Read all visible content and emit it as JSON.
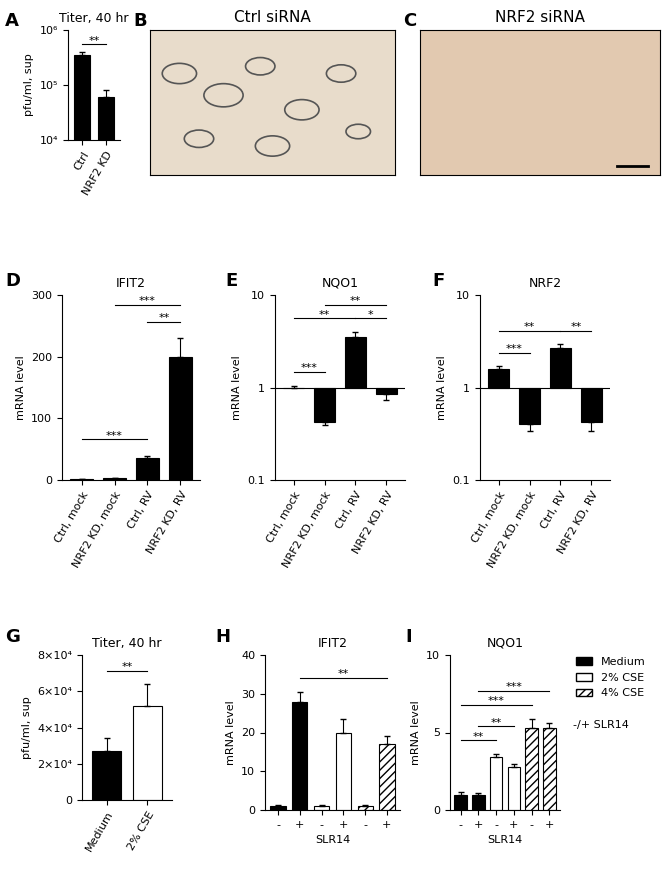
{
  "chart_data": [
    {
      "panel": "A",
      "type": "bar",
      "title": "Titer, 40 hr",
      "y_label": "pfu/ml, sup",
      "categories": [
        "Ctrl",
        "NRF2 KD"
      ],
      "values": [
        350000,
        60000
      ],
      "errors": [
        40000,
        20000
      ],
      "color": "#000000",
      "log": "y",
      "ylim": [
        10000,
        1000000
      ],
      "yticks": [
        {
          "value": 10000,
          "label": "10⁴"
        },
        {
          "value": 100000,
          "label": "10⁵"
        },
        {
          "value": 1000000,
          "label": "10⁶"
        }
      ],
      "significance": [
        {
          "bars": [
            0,
            1
          ],
          "text": "**"
        }
      ]
    },
    {
      "panel": "B",
      "type": "image",
      "title": "Ctrl siRNA"
    },
    {
      "panel": "C",
      "type": "image",
      "title": "NRF2 siRNA"
    },
    {
      "panel": "D",
      "type": "bar",
      "title": "IFIT2",
      "y_label": "mRNA level",
      "categories": [
        "Ctrl, mock",
        "NRF2 KD, mock",
        "Ctrl, RV",
        "NRF2 KD, RV"
      ],
      "values": [
        1,
        3,
        35,
        200
      ],
      "errors": [
        0.3,
        1,
        4,
        30
      ],
      "color": "#000000",
      "ylim": [
        0,
        300
      ],
      "yticks": [
        0,
        100,
        200,
        300
      ],
      "significance": [
        {
          "bars": [
            0,
            2
          ],
          "text": "***"
        },
        {
          "bars": [
            2,
            3
          ],
          "text": "**"
        },
        {
          "bars": [
            1,
            3
          ],
          "text": "***"
        }
      ]
    },
    {
      "panel": "E",
      "type": "bar",
      "title": "NQO1",
      "y_label": "mRNA level",
      "categories": [
        "Ctrl, mock",
        "NRF2 KD, mock",
        "Ctrl, RV",
        "NRF2 KD, RV"
      ],
      "values": [
        1.0,
        0.42,
        3.5,
        0.85
      ],
      "errors": [
        0.05,
        0.03,
        0.5,
        0.12
      ],
      "color": "#000000",
      "log": "y",
      "baseline": 1,
      "ylim": [
        0.1,
        10
      ],
      "yticks": [
        0.1,
        1,
        10
      ],
      "significance": [
        {
          "bars": [
            0,
            1
          ],
          "text": "***"
        },
        {
          "bars": [
            2,
            3
          ],
          "text": "*"
        },
        {
          "bars": [
            0,
            2
          ],
          "text": "**"
        },
        {
          "bars": [
            1,
            3
          ],
          "text": "**"
        }
      ]
    },
    {
      "panel": "F",
      "type": "bar",
      "title": "NRF2",
      "y_label": "mRNA level",
      "categories": [
        "Ctrl, mock",
        "NRF2 KD, mock",
        "Ctrl, RV",
        "NRF2 KD, RV"
      ],
      "values": [
        1.6,
        0.4,
        2.7,
        0.42
      ],
      "errors": [
        0.1,
        0.06,
        0.25,
        0.08
      ],
      "color": "#000000",
      "log": "y",
      "baseline": 1,
      "ylim": [
        0.1,
        10
      ],
      "yticks": [
        0.1,
        1,
        10
      ],
      "significance": [
        {
          "bars": [
            0,
            1
          ],
          "text": "***"
        },
        {
          "bars": [
            2,
            3
          ],
          "text": "**"
        },
        {
          "bars": [
            0,
            2
          ],
          "text": "**"
        }
      ]
    },
    {
      "panel": "G",
      "type": "bar",
      "title": "Titer, 40 hr",
      "y_label": "pfu/ml, sup",
      "categories": [
        "Medium",
        "2% CSE"
      ],
      "values": [
        27000,
        52000
      ],
      "errors": [
        7000,
        12000
      ],
      "colors": [
        "#000000",
        "#ffffff"
      ],
      "ylim": [
        0,
        80000
      ],
      "yticks": [
        0,
        {
          "value": 20000,
          "label": "2×10⁴"
        },
        {
          "value": 40000,
          "label": "4×10⁴"
        },
        {
          "value": 60000,
          "label": "6×10⁴"
        },
        {
          "value": 80000,
          "label": "8×10⁴"
        }
      ],
      "significance": [
        {
          "bars": [
            0,
            1
          ],
          "text": "**"
        }
      ]
    },
    {
      "panel": "H",
      "type": "bar",
      "title": "IFIT2",
      "y_label": "mRNA level",
      "x_label": "SLR14",
      "categories": [
        "-",
        "+"
      ],
      "series": [
        {
          "name": "Medium",
          "color": "#000000",
          "values": [
            1,
            28
          ],
          "errors": [
            0.2,
            2.5
          ]
        },
        {
          "name": "2% CSE",
          "color": "#ffffff",
          "values": [
            1,
            20
          ],
          "errors": [
            0.2,
            3.5
          ]
        },
        {
          "name": "4% CSE",
          "color": "#ffffff",
          "values": [
            1,
            17
          ],
          "errors": [
            0.2,
            2
          ]
        }
      ],
      "ylim": [
        0,
        40
      ],
      "yticks": [
        0,
        10,
        20,
        30,
        40
      ],
      "significance": [
        {
          "bars": [
            1,
            5
          ],
          "text": "**"
        }
      ]
    },
    {
      "panel": "I",
      "type": "bar",
      "title": "NQO1",
      "y_label": "mRNA level",
      "x_label": "SLR14",
      "categories": [
        "-",
        "+"
      ],
      "series": [
        {
          "name": "Medium",
          "color": "#000000",
          "values": [
            1,
            1
          ],
          "errors": [
            0.15,
            0.1
          ]
        },
        {
          "name": "2% CSE",
          "color": "#ffffff",
          "values": [
            3.4,
            2.8
          ],
          "errors": [
            0.2,
            0.2
          ]
        },
        {
          "name": "4% CSE",
          "color": "#ffffff",
          "values": [
            5.3,
            5.3
          ],
          "errors": [
            0.6,
            0.3
          ]
        }
      ],
      "ylim": [
        0,
        10
      ],
      "yticks": [
        0,
        5,
        10
      ],
      "legend": "upper left",
      "note": "-/+ SLR14",
      "significance": [
        {
          "bars": [
            0,
            2
          ],
          "text": "**"
        },
        {
          "bars": [
            1,
            3
          ],
          "text": "**"
        },
        {
          "bars": [
            0,
            4
          ],
          "text": "***"
        },
        {
          "bars": [
            1,
            5
          ],
          "text": "***"
        }
      ]
    }
  ]
}
